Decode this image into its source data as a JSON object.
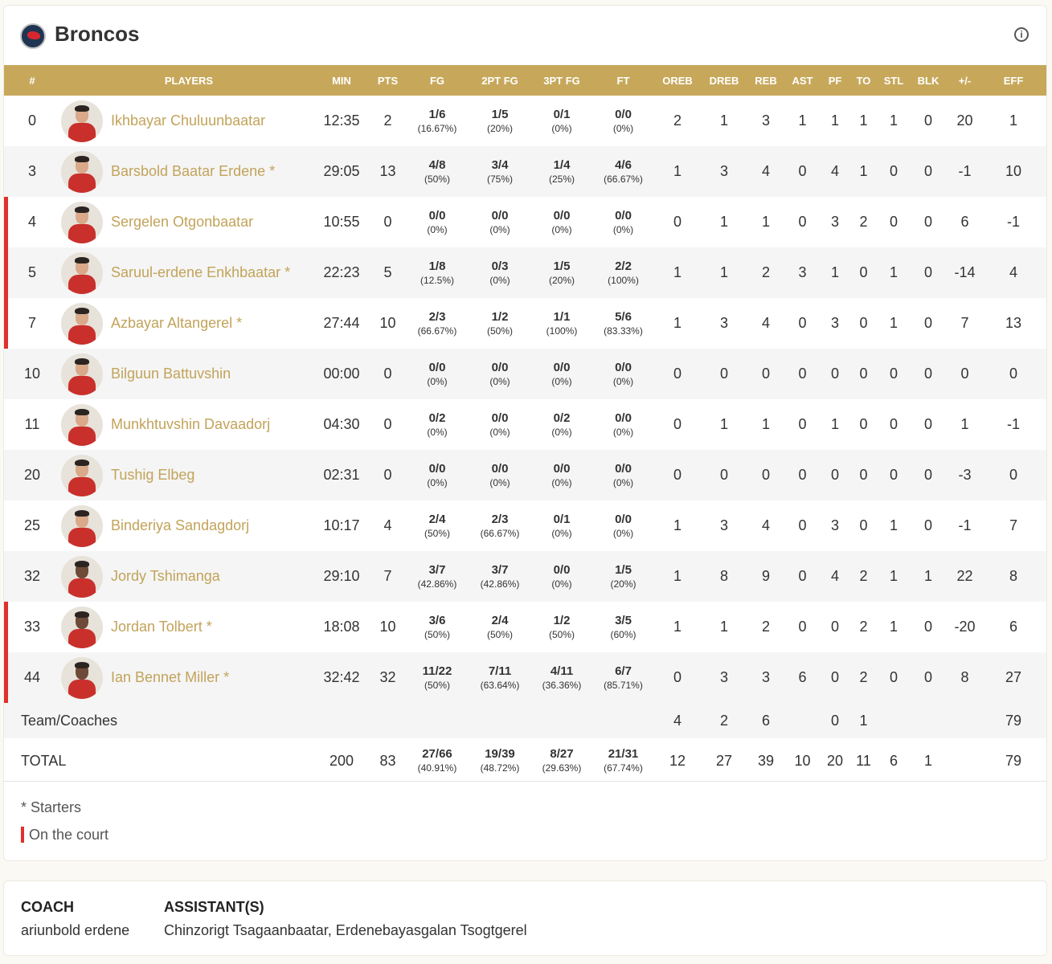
{
  "team": {
    "name": "Broncos",
    "logo_icon": "broncos-logo",
    "info_icon": "info-icon"
  },
  "columns": [
    "#",
    "PLAYERS",
    "MIN",
    "PTS",
    "FG",
    "2PT FG",
    "3PT FG",
    "FT",
    "OREB",
    "DREB",
    "REB",
    "AST",
    "PF",
    "TO",
    "STL",
    "BLK",
    "+/-",
    "EFF"
  ],
  "players": [
    {
      "num": "0",
      "name": "Ikhbayar Chuluunbaatar",
      "starter": false,
      "on_court": false,
      "min": "12:35",
      "pts": "2",
      "fg": "1/6",
      "fg_pct": "(16.67%)",
      "fg2": "1/5",
      "fg2_pct": "(20%)",
      "fg3": "0/1",
      "fg3_pct": "(0%)",
      "ft": "0/0",
      "ft_pct": "(0%)",
      "oreb": "2",
      "dreb": "1",
      "reb": "3",
      "ast": "1",
      "pf": "1",
      "to": "1",
      "stl": "1",
      "blk": "0",
      "pm": "20",
      "eff": "1"
    },
    {
      "num": "3",
      "name": "Barsbold Baatar Erdene",
      "starter": true,
      "on_court": false,
      "min": "29:05",
      "pts": "13",
      "fg": "4/8",
      "fg_pct": "(50%)",
      "fg2": "3/4",
      "fg2_pct": "(75%)",
      "fg3": "1/4",
      "fg3_pct": "(25%)",
      "ft": "4/6",
      "ft_pct": "(66.67%)",
      "oreb": "1",
      "dreb": "3",
      "reb": "4",
      "ast": "0",
      "pf": "4",
      "to": "1",
      "stl": "0",
      "blk": "0",
      "pm": "-1",
      "eff": "10"
    },
    {
      "num": "4",
      "name": "Sergelen Otgonbaatar",
      "starter": false,
      "on_court": true,
      "min": "10:55",
      "pts": "0",
      "fg": "0/0",
      "fg_pct": "(0%)",
      "fg2": "0/0",
      "fg2_pct": "(0%)",
      "fg3": "0/0",
      "fg3_pct": "(0%)",
      "ft": "0/0",
      "ft_pct": "(0%)",
      "oreb": "0",
      "dreb": "1",
      "reb": "1",
      "ast": "0",
      "pf": "3",
      "to": "2",
      "stl": "0",
      "blk": "0",
      "pm": "6",
      "eff": "-1"
    },
    {
      "num": "5",
      "name": "Saruul-erdene Enkhbaatar",
      "starter": true,
      "on_court": true,
      "min": "22:23",
      "pts": "5",
      "fg": "1/8",
      "fg_pct": "(12.5%)",
      "fg2": "0/3",
      "fg2_pct": "(0%)",
      "fg3": "1/5",
      "fg3_pct": "(20%)",
      "ft": "2/2",
      "ft_pct": "(100%)",
      "oreb": "1",
      "dreb": "1",
      "reb": "2",
      "ast": "3",
      "pf": "1",
      "to": "0",
      "stl": "1",
      "blk": "0",
      "pm": "-14",
      "eff": "4"
    },
    {
      "num": "7",
      "name": "Azbayar Altangerel",
      "starter": true,
      "on_court": true,
      "min": "27:44",
      "pts": "10",
      "fg": "2/3",
      "fg_pct": "(66.67%)",
      "fg2": "1/2",
      "fg2_pct": "(50%)",
      "fg3": "1/1",
      "fg3_pct": "(100%)",
      "ft": "5/6",
      "ft_pct": "(83.33%)",
      "oreb": "1",
      "dreb": "3",
      "reb": "4",
      "ast": "0",
      "pf": "3",
      "to": "0",
      "stl": "1",
      "blk": "0",
      "pm": "7",
      "eff": "13"
    },
    {
      "num": "10",
      "name": "Bilguun Battuvshin",
      "starter": false,
      "on_court": false,
      "min": "00:00",
      "pts": "0",
      "fg": "0/0",
      "fg_pct": "(0%)",
      "fg2": "0/0",
      "fg2_pct": "(0%)",
      "fg3": "0/0",
      "fg3_pct": "(0%)",
      "ft": "0/0",
      "ft_pct": "(0%)",
      "oreb": "0",
      "dreb": "0",
      "reb": "0",
      "ast": "0",
      "pf": "0",
      "to": "0",
      "stl": "0",
      "blk": "0",
      "pm": "0",
      "eff": "0"
    },
    {
      "num": "11",
      "name": "Munkhtuvshin Davaadorj",
      "starter": false,
      "on_court": false,
      "min": "04:30",
      "pts": "0",
      "fg": "0/2",
      "fg_pct": "(0%)",
      "fg2": "0/0",
      "fg2_pct": "(0%)",
      "fg3": "0/2",
      "fg3_pct": "(0%)",
      "ft": "0/0",
      "ft_pct": "(0%)",
      "oreb": "0",
      "dreb": "1",
      "reb": "1",
      "ast": "0",
      "pf": "1",
      "to": "0",
      "stl": "0",
      "blk": "0",
      "pm": "1",
      "eff": "-1"
    },
    {
      "num": "20",
      "name": "Tushig Elbeg",
      "starter": false,
      "on_court": false,
      "min": "02:31",
      "pts": "0",
      "fg": "0/0",
      "fg_pct": "(0%)",
      "fg2": "0/0",
      "fg2_pct": "(0%)",
      "fg3": "0/0",
      "fg3_pct": "(0%)",
      "ft": "0/0",
      "ft_pct": "(0%)",
      "oreb": "0",
      "dreb": "0",
      "reb": "0",
      "ast": "0",
      "pf": "0",
      "to": "0",
      "stl": "0",
      "blk": "0",
      "pm": "-3",
      "eff": "0"
    },
    {
      "num": "25",
      "name": "Binderiya Sandagdorj",
      "starter": false,
      "on_court": false,
      "min": "10:17",
      "pts": "4",
      "fg": "2/4",
      "fg_pct": "(50%)",
      "fg2": "2/3",
      "fg2_pct": "(66.67%)",
      "fg3": "0/1",
      "fg3_pct": "(0%)",
      "ft": "0/0",
      "ft_pct": "(0%)",
      "oreb": "1",
      "dreb": "3",
      "reb": "4",
      "ast": "0",
      "pf": "3",
      "to": "0",
      "stl": "1",
      "blk": "0",
      "pm": "-1",
      "eff": "7"
    },
    {
      "num": "32",
      "name": "Jordy Tshimanga",
      "starter": false,
      "on_court": false,
      "min": "29:10",
      "pts": "7",
      "fg": "3/7",
      "fg_pct": "(42.86%)",
      "fg2": "3/7",
      "fg2_pct": "(42.86%)",
      "fg3": "0/0",
      "fg3_pct": "(0%)",
      "ft": "1/5",
      "ft_pct": "(20%)",
      "oreb": "1",
      "dreb": "8",
      "reb": "9",
      "ast": "0",
      "pf": "4",
      "to": "2",
      "stl": "1",
      "blk": "1",
      "pm": "22",
      "eff": "8"
    },
    {
      "num": "33",
      "name": "Jordan Tolbert",
      "starter": true,
      "on_court": true,
      "min": "18:08",
      "pts": "10",
      "fg": "3/6",
      "fg_pct": "(50%)",
      "fg2": "2/4",
      "fg2_pct": "(50%)",
      "fg3": "1/2",
      "fg3_pct": "(50%)",
      "ft": "3/5",
      "ft_pct": "(60%)",
      "oreb": "1",
      "dreb": "1",
      "reb": "2",
      "ast": "0",
      "pf": "0",
      "to": "2",
      "stl": "1",
      "blk": "0",
      "pm": "-20",
      "eff": "6"
    },
    {
      "num": "44",
      "name": "Ian Bennet Miller",
      "starter": true,
      "on_court": true,
      "min": "32:42",
      "pts": "32",
      "fg": "11/22",
      "fg_pct": "(50%)",
      "fg2": "7/11",
      "fg2_pct": "(63.64%)",
      "fg3": "4/11",
      "fg3_pct": "(36.36%)",
      "ft": "6/7",
      "ft_pct": "(85.71%)",
      "oreb": "0",
      "dreb": "3",
      "reb": "3",
      "ast": "6",
      "pf": "0",
      "to": "2",
      "stl": "0",
      "blk": "0",
      "pm": "8",
      "eff": "27"
    }
  ],
  "team_coaches": {
    "label": "Team/Coaches",
    "oreb": "4",
    "dreb": "2",
    "reb": "6",
    "pf": "0",
    "to": "1",
    "eff": "79"
  },
  "total": {
    "label": "TOTAL",
    "min": "200",
    "pts": "83",
    "fg": "27/66",
    "fg_pct": "(40.91%)",
    "fg2": "19/39",
    "fg2_pct": "(48.72%)",
    "fg3": "8/27",
    "fg3_pct": "(29.63%)",
    "ft": "21/31",
    "ft_pct": "(67.74%)",
    "oreb": "12",
    "dreb": "27",
    "reb": "39",
    "ast": "10",
    "pf": "20",
    "to": "11",
    "stl": "6",
    "blk": "1",
    "eff": "79"
  },
  "legend": {
    "starters": "* Starters",
    "on_court": "On the court"
  },
  "coaches": {
    "coach_label": "COACH",
    "coach_name": "ariunbold erdene",
    "assistants_label": "ASSISTANT(S)",
    "assistants": "Chinzorigt Tsagaanbaatar, Erdenebayasgalan Tsogtgerel"
  },
  "colors": {
    "header_gold": "#c7a85b",
    "name_gold": "#c2a35a",
    "on_court_red": "#e0302b"
  }
}
